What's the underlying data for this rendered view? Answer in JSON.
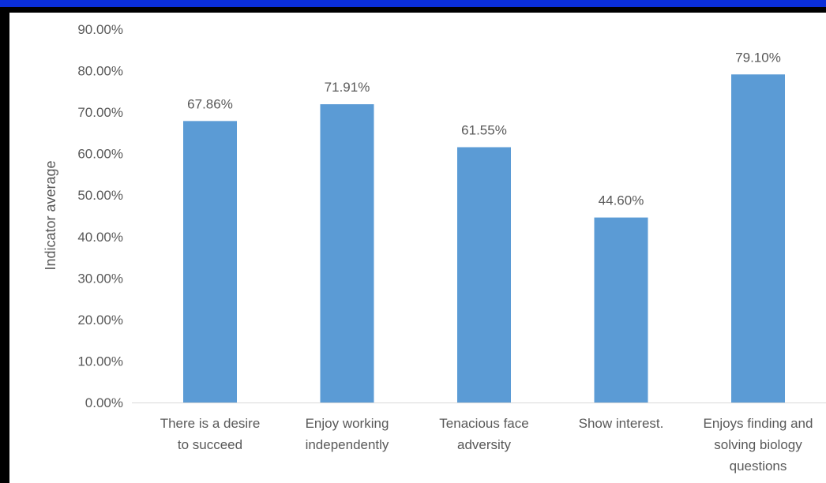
{
  "colors": {
    "bar": "#5b9bd5",
    "frame": "#000000",
    "top_bar": "#0a2ed8",
    "text": "#595959",
    "baseline": "#d9d9d9"
  },
  "chart_data": {
    "type": "bar",
    "title": "",
    "xlabel": "",
    "ylabel": "Indicator average",
    "ylim": [
      0,
      0.9
    ],
    "yticks": [
      "0.00%",
      "10.00%",
      "20.00%",
      "30.00%",
      "40.00%",
      "50.00%",
      "60.00%",
      "70.00%",
      "80.00%",
      "90.00%"
    ],
    "grid": false,
    "legend": "none",
    "categories": [
      [
        "There is a desire",
        "to succeed"
      ],
      [
        "Enjoy working",
        "independently"
      ],
      [
        "Tenacious face",
        "adversity"
      ],
      [
        "Show interest."
      ],
      [
        "Enjoys finding and",
        "solving biology",
        "questions"
      ]
    ],
    "values": [
      0.6786,
      0.7191,
      0.6155,
      0.446,
      0.791
    ],
    "data_labels": [
      "67.86%",
      "71.91%",
      "61.55%",
      "44.60%",
      "79.10%"
    ]
  }
}
